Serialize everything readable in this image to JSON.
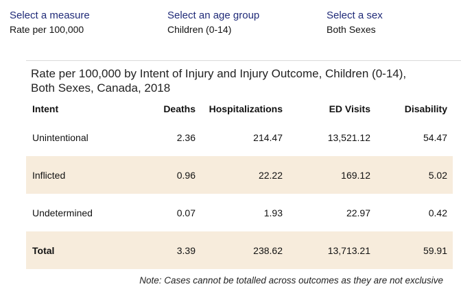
{
  "selectors": {
    "measure": {
      "label": "Select a measure",
      "value": "Rate per 100,000"
    },
    "age_group": {
      "label": "Select an age group",
      "value": "Children (0-14)"
    },
    "sex": {
      "label": "Select a sex",
      "value": "Both Sexes"
    }
  },
  "table": {
    "title_line1": "Rate per 100,000 by Intent of Injury and Injury Outcome, Children (0-14),",
    "title_line2": "Both Sexes, Canada, 2018",
    "headers": {
      "intent": "Intent",
      "deaths": "Deaths",
      "hospitalizations": "Hospitalizations",
      "ed_visits": "ED Visits",
      "disability": "Disability"
    },
    "rows": [
      {
        "intent": "Unintentional",
        "deaths": "2.36",
        "hospitalizations": "214.47",
        "ed_visits": "13,521.12",
        "disability": "54.47"
      },
      {
        "intent": "Inflicted",
        "deaths": "0.96",
        "hospitalizations": "22.22",
        "ed_visits": "169.12",
        "disability": "5.02"
      },
      {
        "intent": "Undetermined",
        "deaths": "0.07",
        "hospitalizations": "1.93",
        "ed_visits": "22.97",
        "disability": "0.42"
      },
      {
        "intent": "Total",
        "deaths": "3.39",
        "hospitalizations": "238.62",
        "ed_visits": "13,713.21",
        "disability": "59.91"
      }
    ],
    "row_shading_color": "#f7ecdc"
  },
  "note": "Note: Cases cannot be totalled across outcomes as they are not exclusive",
  "colors": {
    "selector_label": "#1f2a78"
  }
}
